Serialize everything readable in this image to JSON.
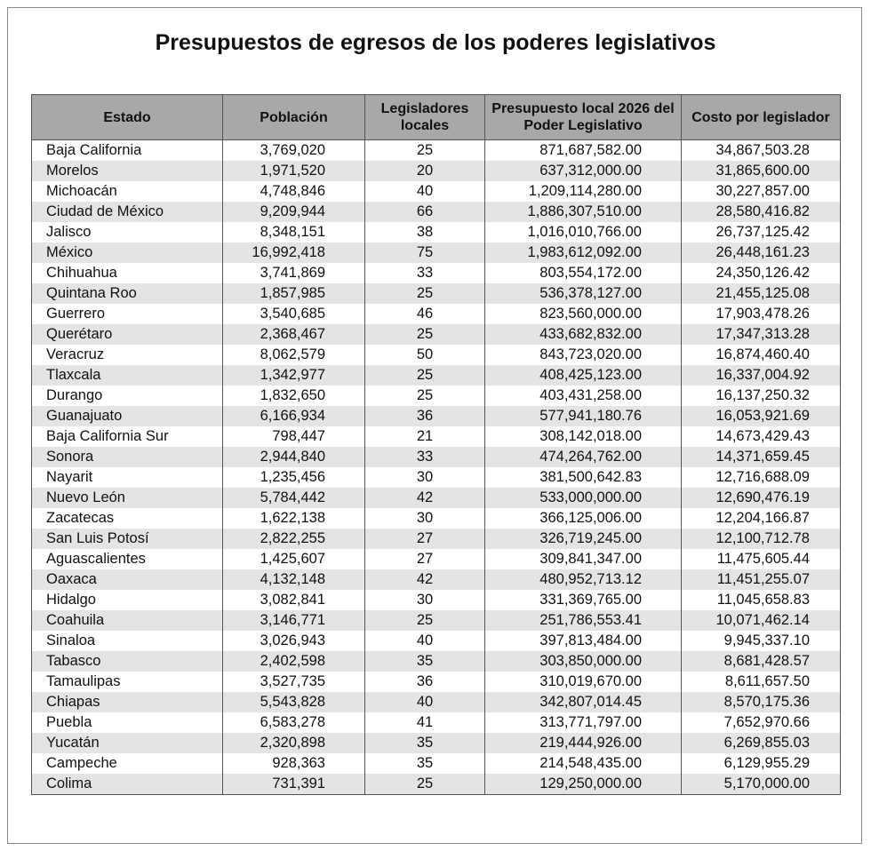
{
  "title": "Presupuestos de egresos de los poderes legislativos",
  "table": {
    "header": [
      "Estado",
      "Población",
      "Legisladores locales",
      "Presupuesto local 2026 del Poder Legislativo",
      "Costo por legislador"
    ],
    "rows": [
      [
        "Baja California",
        "3,769,020",
        "25",
        "871,687,582.00",
        "34,867,503.28"
      ],
      [
        "Morelos",
        "1,971,520",
        "20",
        "637,312,000.00",
        "31,865,600.00"
      ],
      [
        "Michoacán",
        "4,748,846",
        "40",
        "1,209,114,280.00",
        "30,227,857.00"
      ],
      [
        "Ciudad de México",
        "9,209,944",
        "66",
        "1,886,307,510.00",
        "28,580,416.82"
      ],
      [
        "Jalisco",
        "8,348,151",
        "38",
        "1,016,010,766.00",
        "26,737,125.42"
      ],
      [
        "México",
        "16,992,418",
        "75",
        "1,983,612,092.00",
        "26,448,161.23"
      ],
      [
        "Chihuahua",
        "3,741,869",
        "33",
        "803,554,172.00",
        "24,350,126.42"
      ],
      [
        "Quintana Roo",
        "1,857,985",
        "25",
        "536,378,127.00",
        "21,455,125.08"
      ],
      [
        "Guerrero",
        "3,540,685",
        "46",
        "823,560,000.00",
        "17,903,478.26"
      ],
      [
        "Querétaro",
        "2,368,467",
        "25",
        "433,682,832.00",
        "17,347,313.28"
      ],
      [
        "Veracruz",
        "8,062,579",
        "50",
        "843,723,020.00",
        "16,874,460.40"
      ],
      [
        "Tlaxcala",
        "1,342,977",
        "25",
        "408,425,123.00",
        "16,337,004.92"
      ],
      [
        "Durango",
        "1,832,650",
        "25",
        "403,431,258.00",
        "16,137,250.32"
      ],
      [
        "Guanajuato",
        "6,166,934",
        "36",
        "577,941,180.76",
        "16,053,921.69"
      ],
      [
        "Baja California Sur",
        "798,447",
        "21",
        "308,142,018.00",
        "14,673,429.43"
      ],
      [
        "Sonora",
        "2,944,840",
        "33",
        "474,264,762.00",
        "14,371,659.45"
      ],
      [
        "Nayarit",
        "1,235,456",
        "30",
        "381,500,642.83",
        "12,716,688.09"
      ],
      [
        "Nuevo León",
        "5,784,442",
        "42",
        "533,000,000.00",
        "12,690,476.19"
      ],
      [
        "Zacatecas",
        "1,622,138",
        "30",
        "366,125,006.00",
        "12,204,166.87"
      ],
      [
        "San Luis Potosí",
        "2,822,255",
        "27",
        "326,719,245.00",
        "12,100,712.78"
      ],
      [
        "Aguascalientes",
        "1,425,607",
        "27",
        "309,841,347.00",
        "11,475,605.44"
      ],
      [
        "Oaxaca",
        "4,132,148",
        "42",
        "480,952,713.12",
        "11,451,255.07"
      ],
      [
        "Hidalgo",
        "3,082,841",
        "30",
        "331,369,765.00",
        "11,045,658.83"
      ],
      [
        "Coahuila",
        "3,146,771",
        "25",
        "251,786,553.41",
        "10,071,462.14"
      ],
      [
        "Sinaloa",
        "3,026,943",
        "40",
        "397,813,484.00",
        "9,945,337.10"
      ],
      [
        "Tabasco",
        "2,402,598",
        "35",
        "303,850,000.00",
        "8,681,428.57"
      ],
      [
        "Tamaulipas",
        "3,527,735",
        "36",
        "310,019,670.00",
        "8,611,657.50"
      ],
      [
        "Chiapas",
        "5,543,828",
        "40",
        "342,807,014.45",
        "8,570,175.36"
      ],
      [
        "Puebla",
        "6,583,278",
        "41",
        "313,771,797.00",
        "7,652,970.66"
      ],
      [
        "Yucatán",
        "2,320,898",
        "35",
        "219,444,926.00",
        "6,269,855.03"
      ],
      [
        "Campeche",
        "928,363",
        "35",
        "214,548,435.00",
        "6,129,955.29"
      ],
      [
        "Colima",
        "731,391",
        "25",
        "129,250,000.00",
        "5,170,000.00"
      ]
    ]
  }
}
